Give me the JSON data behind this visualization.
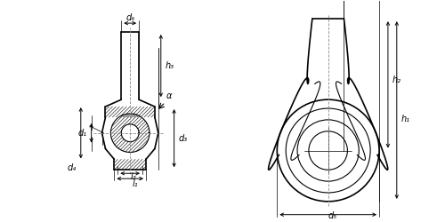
{
  "bg_color": "#ffffff",
  "line_color": "#000000",
  "hatch_color": "#000000",
  "dim_color": "#000000",
  "centerline_color": "#888888",
  "fig_width": 5.0,
  "fig_height": 2.5,
  "labels": {
    "l1": "l₁",
    "l2": "l₂",
    "d1": "d₁",
    "d3": "d₃",
    "d4": "d₄",
    "d5": "d₅",
    "d6": "d₆",
    "h1": "h₁",
    "h2": "h₂",
    "h3": "h₃",
    "alpha": "α"
  }
}
